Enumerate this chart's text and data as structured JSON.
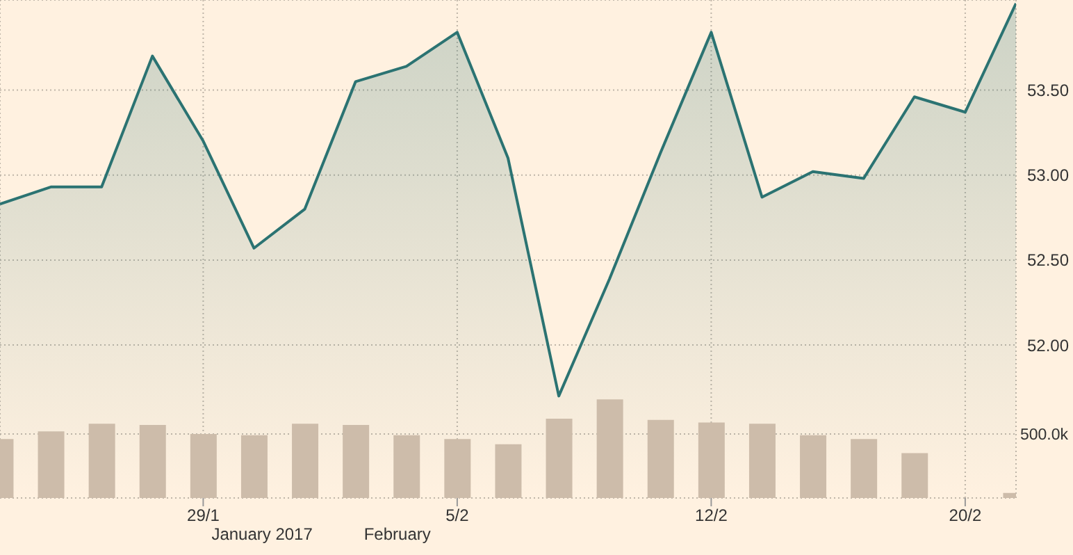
{
  "chart_data": {
    "type": "area",
    "categories": [
      null,
      null,
      null,
      null,
      "29/1",
      null,
      null,
      null,
      null,
      "5/2",
      null,
      null,
      null,
      null,
      "12/2",
      null,
      null,
      null,
      null,
      "20/2",
      null
    ],
    "series": [
      {
        "color": "#2b7372",
        "values": [
          52.83,
          52.93,
          52.93,
          53.7,
          53.2,
          52.57,
          52.8,
          53.55,
          53.64,
          53.84,
          53.1,
          51.7,
          52.39,
          53.13,
          53.84,
          52.87,
          53.02,
          52.98,
          53.46,
          53.37,
          54.01
        ]
      },
      {
        "type": "bar",
        "axis": "y2",
        "color": "#cdbcaa",
        "values": [
          460000,
          520000,
          580000,
          570000,
          500000,
          490000,
          580000,
          570000,
          490000,
          460000,
          420000,
          620000,
          770000,
          610000,
          590000,
          580000,
          490000,
          460000,
          350000,
          null,
          40000
        ]
      }
    ],
    "ylim": [
      51.1,
      54.03
    ],
    "yticks": [
      {
        "value": 52,
        "label": "52.00"
      },
      {
        "value": 52.5,
        "label": "52.50"
      },
      {
        "value": 53,
        "label": "53.00"
      },
      {
        "value": 53.5,
        "label": "53.50"
      }
    ],
    "y2lim": [
      0,
      3890000
    ],
    "y2ticks": [
      {
        "value": 500000,
        "label": "500.0k"
      }
    ],
    "grid": true,
    "annotations": [
      "January 2017",
      "February"
    ]
  }
}
